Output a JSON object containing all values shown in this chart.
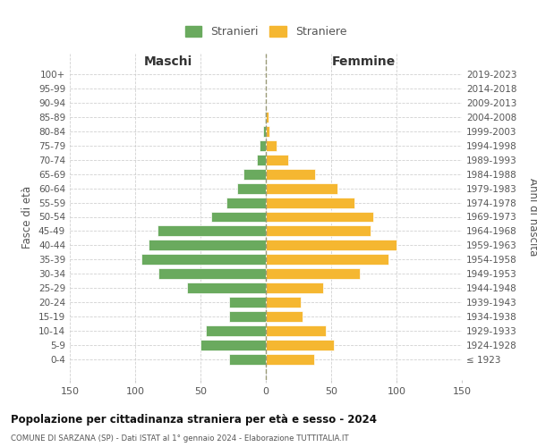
{
  "age_groups": [
    "100+",
    "95-99",
    "90-94",
    "85-89",
    "80-84",
    "75-79",
    "70-74",
    "65-69",
    "60-64",
    "55-59",
    "50-54",
    "45-49",
    "40-44",
    "35-39",
    "30-34",
    "25-29",
    "20-24",
    "15-19",
    "10-14",
    "5-9",
    "0-4"
  ],
  "birth_years": [
    "≤ 1923",
    "1924-1928",
    "1929-1933",
    "1934-1938",
    "1939-1943",
    "1944-1948",
    "1949-1953",
    "1954-1958",
    "1959-1963",
    "1964-1968",
    "1969-1973",
    "1974-1978",
    "1979-1983",
    "1984-1988",
    "1989-1993",
    "1994-1998",
    "1999-2003",
    "2004-2008",
    "2009-2013",
    "2014-2018",
    "2019-2023"
  ],
  "maschi": [
    0,
    0,
    0,
    1,
    2,
    5,
    7,
    17,
    22,
    30,
    42,
    83,
    90,
    95,
    82,
    60,
    28,
    28,
    46,
    50,
    28
  ],
  "femmine": [
    0,
    0,
    0,
    2,
    3,
    8,
    17,
    38,
    55,
    68,
    82,
    80,
    100,
    94,
    72,
    44,
    27,
    28,
    46,
    52,
    37
  ],
  "male_color": "#6aaa5e",
  "female_color": "#f5b731",
  "bar_edge_color": "#ffffff",
  "background_color": "#ffffff",
  "grid_color": "#cccccc",
  "title": "Popolazione per cittadinanza straniera per età e sesso - 2024",
  "subtitle": "COMUNE DI SARZANA (SP) - Dati ISTAT al 1° gennaio 2024 - Elaborazione TUTTITALIA.IT",
  "xlabel_left": "Maschi",
  "xlabel_right": "Femmine",
  "ylabel_left": "Fasce di età",
  "ylabel_right": "Anni di nascita",
  "legend_male": "Stranieri",
  "legend_female": "Straniere",
  "xlim": 150,
  "center_line_color": "#999977",
  "text_color": "#555555",
  "title_color": "#111111"
}
